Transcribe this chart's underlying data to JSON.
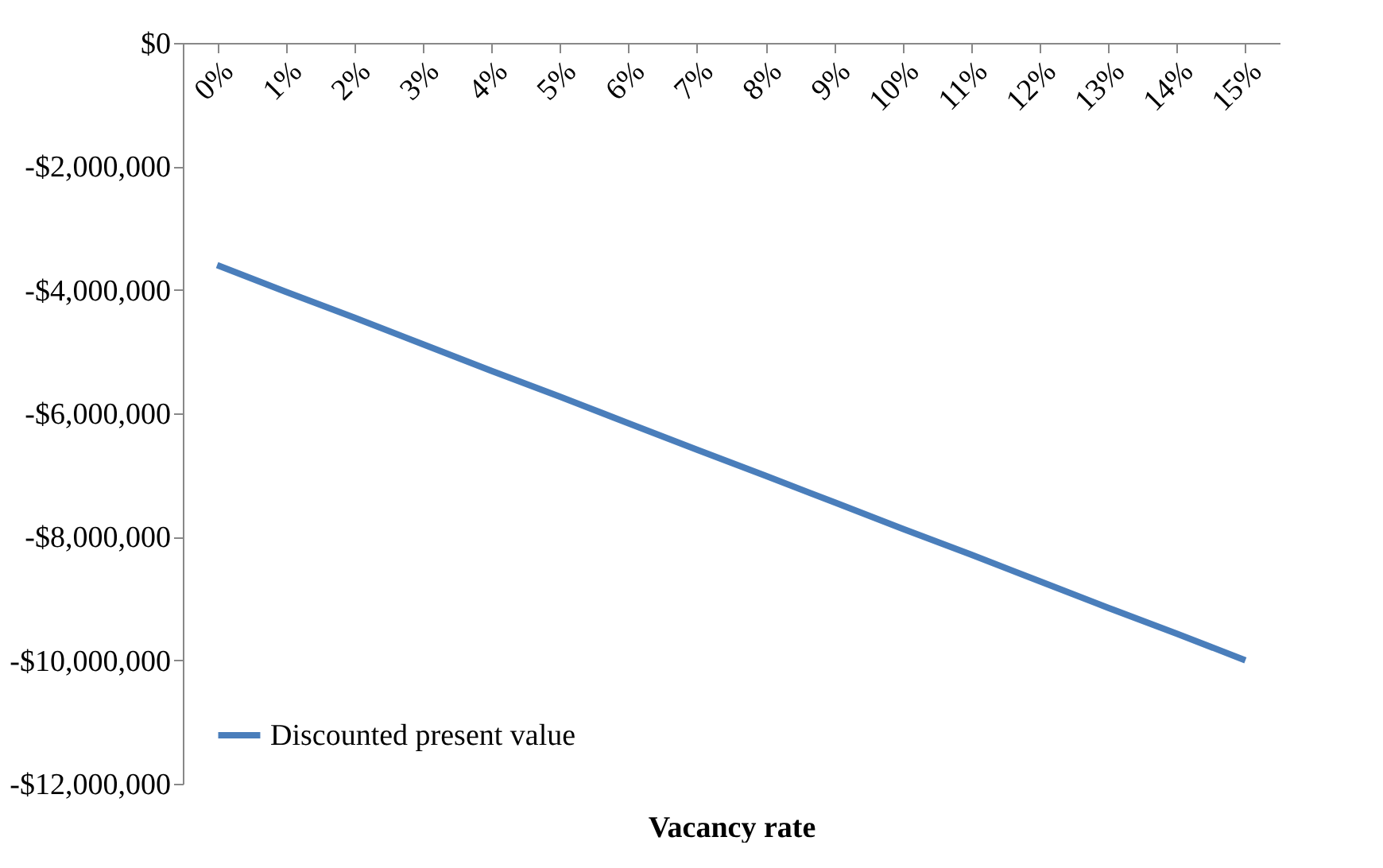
{
  "chart_data": {
    "type": "line",
    "xlabel": "Vacancy rate",
    "categories": [
      "0%",
      "1%",
      "2%",
      "3%",
      "4%",
      "5%",
      "6%",
      "7%",
      "8%",
      "9%",
      "10%",
      "11%",
      "12%",
      "13%",
      "14%",
      "15%"
    ],
    "series": [
      {
        "name": "Discounted present value",
        "color": "#4a7ebb",
        "values": [
          -3600000,
          -4030000,
          -4450000,
          -4880000,
          -5310000,
          -5730000,
          -6160000,
          -6590000,
          -7010000,
          -7440000,
          -7870000,
          -8290000,
          -8720000,
          -9150000,
          -9570000,
          -10000000
        ]
      }
    ],
    "ylim": [
      -12000000,
      0
    ],
    "yticks": [
      {
        "value": -12000000,
        "label": "-$12,000,000"
      },
      {
        "value": -10000000,
        "label": "-$10,000,000"
      },
      {
        "value": -8000000,
        "label": "-$8,000,000"
      },
      {
        "value": -6000000,
        "label": "-$6,000,000"
      },
      {
        "value": -4000000,
        "label": "-$4,000,000"
      },
      {
        "value": -2000000,
        "label": "-$2,000,000"
      },
      {
        "value": 0,
        "label": "$0"
      }
    ],
    "grid": false,
    "legend": "bottom left",
    "marker": "none",
    "line_style": "solid"
  }
}
